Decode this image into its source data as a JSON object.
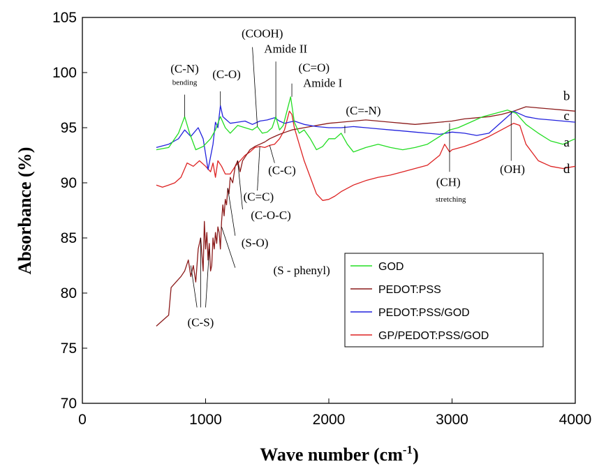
{
  "chart_data": {
    "type": "line",
    "xlabel": "Wave number (cm",
    "xlabel_sup": "-1",
    "xlabel_end": ")",
    "ylabel": "Absorbance (%)",
    "xlim": [
      0,
      4000
    ],
    "ylim": [
      70,
      105
    ],
    "xticks": [
      0,
      1000,
      2000,
      3000,
      4000
    ],
    "yticks": [
      70,
      75,
      80,
      85,
      90,
      95,
      100,
      105
    ],
    "grid": false,
    "legend_position": "bottom-right",
    "series": [
      {
        "name": "GOD",
        "label": "a",
        "color": "#22dd22",
        "x": [
          600,
          700,
          780,
          830,
          870,
          920,
          980,
          1040,
          1080,
          1120,
          1160,
          1200,
          1260,
          1320,
          1380,
          1420,
          1460,
          1500,
          1540,
          1570,
          1600,
          1630,
          1660,
          1690,
          1720,
          1760,
          1800,
          1850,
          1900,
          1950,
          2000,
          2050,
          2100,
          2150,
          2200,
          2300,
          2400,
          2500,
          2600,
          2700,
          2800,
          2900,
          2980,
          3050,
          3150,
          3250,
          3350,
          3450,
          3520,
          3600,
          3700,
          3800,
          3900,
          4000
        ],
        "y": [
          93.0,
          93.2,
          94.5,
          96.0,
          94.5,
          93.0,
          93.3,
          94.0,
          94.8,
          96.0,
          95.0,
          94.5,
          95.2,
          95.0,
          94.8,
          95.1,
          94.5,
          94.6,
          95.0,
          96.0,
          94.8,
          95.2,
          96.5,
          97.8,
          95.5,
          94.5,
          94.8,
          94.0,
          93.0,
          93.3,
          94.0,
          94.0,
          94.5,
          93.5,
          92.8,
          93.2,
          93.5,
          93.2,
          93.0,
          93.2,
          93.5,
          94.2,
          94.8,
          95.0,
          95.5,
          96.0,
          96.3,
          96.6,
          96.3,
          95.3,
          94.5,
          93.8,
          93.5,
          94.0
        ]
      },
      {
        "name": "PEDOT:PSS",
        "label": "b",
        "color": "#8b1a1a",
        "x": [
          600,
          650,
          700,
          720,
          760,
          800,
          830,
          860,
          880,
          900,
          920,
          940,
          960,
          980,
          990,
          1000,
          1010,
          1020,
          1030,
          1040,
          1050,
          1060,
          1070,
          1080,
          1090,
          1100,
          1110,
          1120,
          1130,
          1140,
          1150,
          1160,
          1170,
          1180,
          1190,
          1200,
          1220,
          1240,
          1260,
          1280,
          1300,
          1330,
          1360,
          1400,
          1440,
          1480,
          1520,
          1560,
          1600,
          1650,
          1700,
          1800,
          1900,
          2000,
          2100,
          2200,
          2300,
          2400,
          2500,
          2600,
          2700,
          2800,
          2900,
          3000,
          3100,
          3200,
          3300,
          3400,
          3500,
          3550,
          3600,
          3700,
          3800,
          3900,
          4000
        ],
        "y": [
          77.0,
          77.5,
          78.0,
          80.5,
          81.0,
          81.5,
          82.0,
          83.0,
          81.5,
          82.5,
          81.0,
          84.0,
          85.0,
          82.0,
          86.5,
          84.0,
          85.5,
          83.0,
          84.5,
          82.0,
          82.5,
          85.0,
          84.0,
          85.5,
          84.5,
          86.0,
          85.5,
          84.0,
          86.5,
          88.0,
          87.0,
          88.5,
          88.0,
          89.5,
          89.0,
          90.5,
          90.0,
          91.5,
          92.0,
          91.0,
          92.0,
          92.5,
          93.0,
          93.3,
          93.5,
          93.7,
          94.0,
          94.2,
          94.4,
          94.6,
          94.8,
          95.0,
          95.2,
          95.4,
          95.5,
          95.6,
          95.7,
          95.6,
          95.5,
          95.4,
          95.3,
          95.4,
          95.5,
          95.6,
          95.8,
          95.9,
          96.0,
          96.2,
          96.5,
          96.7,
          96.9,
          96.8,
          96.7,
          96.6,
          96.5
        ]
      },
      {
        "name": "PEDOT:PSS/GOD",
        "label": "c",
        "color": "#2222dd",
        "x": [
          600,
          700,
          780,
          830,
          880,
          940,
          980,
          1020,
          1060,
          1080,
          1100,
          1120,
          1140,
          1160,
          1200,
          1260,
          1320,
          1380,
          1440,
          1500,
          1560,
          1600,
          1640,
          1680,
          1720,
          1800,
          1900,
          2000,
          2100,
          2200,
          2300,
          2400,
          2500,
          2600,
          2700,
          2800,
          2900,
          3000,
          3100,
          3200,
          3300,
          3400,
          3500,
          3600,
          3700,
          3800,
          3900,
          4000
        ],
        "y": [
          93.2,
          93.5,
          94.0,
          94.8,
          94.2,
          95.0,
          94.0,
          91.2,
          93.5,
          95.5,
          95.0,
          97.0,
          96.0,
          95.8,
          95.4,
          95.5,
          95.6,
          95.3,
          95.6,
          95.7,
          95.9,
          95.6,
          95.4,
          95.5,
          95.6,
          95.3,
          95.1,
          95.0,
          95.0,
          95.1,
          95.0,
          94.9,
          94.8,
          94.7,
          94.6,
          94.5,
          94.4,
          94.6,
          94.5,
          94.3,
          94.5,
          95.5,
          96.5,
          96.0,
          95.8,
          95.7,
          95.6,
          95.5
        ]
      },
      {
        "name": "GP/PEDOT:PSS/GOD",
        "label": "d",
        "color": "#dd2222",
        "x": [
          600,
          650,
          700,
          750,
          800,
          850,
          900,
          950,
          1000,
          1040,
          1060,
          1080,
          1100,
          1130,
          1160,
          1200,
          1240,
          1280,
          1320,
          1360,
          1400,
          1440,
          1480,
          1520,
          1560,
          1600,
          1640,
          1680,
          1700,
          1720,
          1760,
          1800,
          1850,
          1900,
          1950,
          2000,
          2050,
          2100,
          2200,
          2300,
          2400,
          2500,
          2600,
          2700,
          2800,
          2900,
          2940,
          2980,
          3000,
          3100,
          3200,
          3300,
          3400,
          3500,
          3550,
          3600,
          3700,
          3800,
          3900,
          4000
        ],
        "y": [
          89.8,
          89.6,
          89.8,
          90.0,
          90.5,
          91.8,
          91.5,
          92.0,
          91.5,
          91.0,
          91.8,
          90.5,
          92.0,
          91.5,
          90.8,
          90.8,
          91.5,
          92.0,
          92.5,
          92.8,
          93.2,
          93.3,
          93.2,
          93.4,
          93.5,
          94.0,
          94.8,
          96.5,
          96.2,
          95.0,
          93.5,
          92.0,
          90.5,
          89.0,
          88.4,
          88.5,
          88.8,
          89.2,
          89.8,
          90.2,
          90.5,
          90.7,
          91.0,
          91.3,
          91.6,
          92.5,
          93.5,
          92.8,
          93.0,
          93.3,
          93.7,
          94.2,
          94.8,
          95.4,
          95.2,
          93.5,
          92.0,
          91.5,
          91.3,
          91.5
        ]
      }
    ],
    "annotations": [
      {
        "text": "(C-N)",
        "x": 830,
        "y": 100.0
      },
      {
        "text": "bending",
        "x": 830,
        "y": 98.9,
        "small": true
      },
      {
        "text": "(C-O)",
        "x": 1170,
        "y": 99.5
      },
      {
        "text": "(COOH)",
        "x": 1460,
        "y": 103.2
      },
      {
        "text": "Amide II",
        "x": 1650,
        "y": 101.8
      },
      {
        "text": "(C=O)",
        "x": 1880,
        "y": 100.1
      },
      {
        "text": "Amide I",
        "x": 1950,
        "y": 98.7
      },
      {
        "text": "(C=-N)",
        "x": 2280,
        "y": 96.2
      },
      {
        "text": "(C-C)",
        "x": 1620,
        "y": 90.8
      },
      {
        "text": "(C=C)",
        "x": 1430,
        "y": 88.4
      },
      {
        "text": "(C-O-C)",
        "x": 1530,
        "y": 86.7
      },
      {
        "text": "(S-O)",
        "x": 1400,
        "y": 84.2
      },
      {
        "text": "(S - phenyl)",
        "x": 1780,
        "y": 81.7
      },
      {
        "text": "(C-S)",
        "x": 960,
        "y": 77.0
      },
      {
        "text": "(CH)",
        "x": 2970,
        "y": 89.7
      },
      {
        "text": "stretching",
        "x": 2990,
        "y": 88.3,
        "small": true
      },
      {
        "text": "(OH)",
        "x": 3490,
        "y": 90.9
      }
    ],
    "pointers": [
      {
        "x1": 830,
        "y1": 98.0,
        "x2": 830,
        "y2": 96.0
      },
      {
        "x1": 1120,
        "y1": 98.3,
        "x2": 1120,
        "y2": 97.0
      },
      {
        "x1": 1380,
        "y1": 102.3,
        "x2": 1420,
        "y2": 95.1
      },
      {
        "x1": 1570,
        "y1": 101.0,
        "x2": 1570,
        "y2": 96.0
      },
      {
        "x1": 1700,
        "y1": 99.0,
        "x2": 1700,
        "y2": 97.8
      },
      {
        "x1": 2130,
        "y1": 95.2,
        "x2": 2130,
        "y2": 94.5
      },
      {
        "x1": 1560,
        "y1": 91.8,
        "x2": 1520,
        "y2": 93.4
      },
      {
        "x1": 1420,
        "y1": 89.3,
        "x2": 1440,
        "y2": 93.3
      },
      {
        "x1": 1300,
        "y1": 87.6,
        "x2": 1260,
        "y2": 92.0
      },
      {
        "x1": 1240,
        "y1": 85.2,
        "x2": 1180,
        "y2": 89.5
      },
      {
        "x1": 1240,
        "y1": 82.3,
        "x2": 1130,
        "y2": 86.0
      },
      {
        "x1": 930,
        "y1": 78.7,
        "x2": 880,
        "y2": 82.5
      },
      {
        "x1": 960,
        "y1": 78.7,
        "x2": 960,
        "y2": 85.0
      },
      {
        "x1": 1000,
        "y1": 78.7,
        "x2": 1030,
        "y2": 84.0
      },
      {
        "x1": 2980,
        "y1": 91.0,
        "x2": 2980,
        "y2": 95.4
      },
      {
        "x1": 3480,
        "y1": 92.0,
        "x2": 3480,
        "y2": 96.5
      }
    ],
    "curve_letters": [
      {
        "text": "b",
        "x": 3930,
        "y": 97.5
      },
      {
        "text": "c",
        "x": 3930,
        "y": 95.7
      },
      {
        "text": "a",
        "x": 3930,
        "y": 93.3
      },
      {
        "text": "d",
        "x": 3930,
        "y": 90.9
      }
    ]
  }
}
